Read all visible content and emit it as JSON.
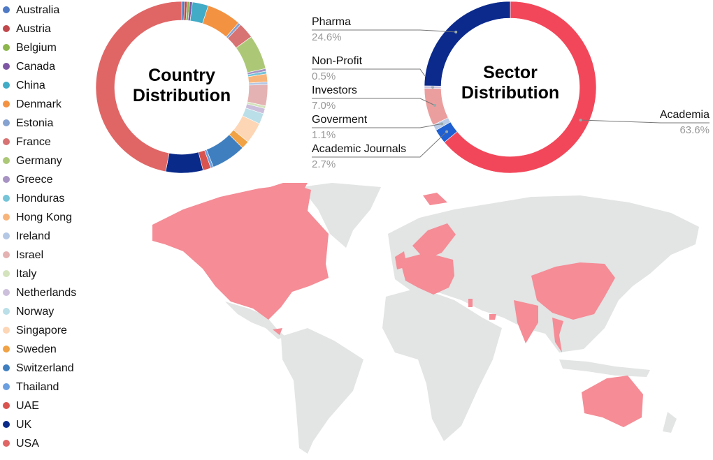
{
  "chart_data": [
    {
      "type": "donut",
      "title": "Country Distribution",
      "legend": "left",
      "categories": [
        "Australia",
        "Austria",
        "Belgium",
        "Canada",
        "China",
        "Denmark",
        "Estonia",
        "France",
        "Germany",
        "Greece",
        "Honduras",
        "Hong Kong",
        "Ireland",
        "Israel",
        "Italy",
        "Netherlands",
        "Norway",
        "Singapore",
        "Sweden",
        "Switzerland",
        "Thailand",
        "UAE",
        "UK",
        "USA"
      ],
      "values": [
        0.5,
        0.5,
        0.5,
        0.5,
        3,
        6.5,
        0.5,
        3,
        6.5,
        0.5,
        0.5,
        1.5,
        0.5,
        4,
        0.5,
        1,
        2,
        4,
        1.5,
        6.5,
        0.5,
        1.5,
        7,
        47
      ],
      "colors": [
        "#4e79c4",
        "#c0474b",
        "#8db64d",
        "#7e57a4",
        "#42abc6",
        "#f39342",
        "#86a2d0",
        "#d87373",
        "#acc877",
        "#a793c3",
        "#75c4d8",
        "#f8b57b",
        "#b4c7e4",
        "#e4b2b2",
        "#d4e3bd",
        "#cbbfdc",
        "#badfe8",
        "#fdd6b5",
        "#f0a245",
        "#3f7fc0",
        "#6b9fe0",
        "#d9534f",
        "#0a2a8a",
        "#e06666"
      ]
    },
    {
      "type": "donut",
      "title": "Sector Distribution",
      "categories": [
        "Academia",
        "Academic Journals",
        "Goverment",
        "Investors",
        "Non-Profit",
        "Pharma"
      ],
      "values": [
        63.6,
        2.7,
        1.1,
        7.0,
        0.5,
        24.6
      ],
      "value_labels": [
        "63.6%",
        "2.7%",
        "1.1%",
        "7.0%",
        "0.5%",
        "24.6%"
      ],
      "colors": [
        "#f2475a",
        "#1f5fd1",
        "#b9cbe6",
        "#eb9e9e",
        "#c9c4e0",
        "#0b2a8c"
      ]
    }
  ]
}
